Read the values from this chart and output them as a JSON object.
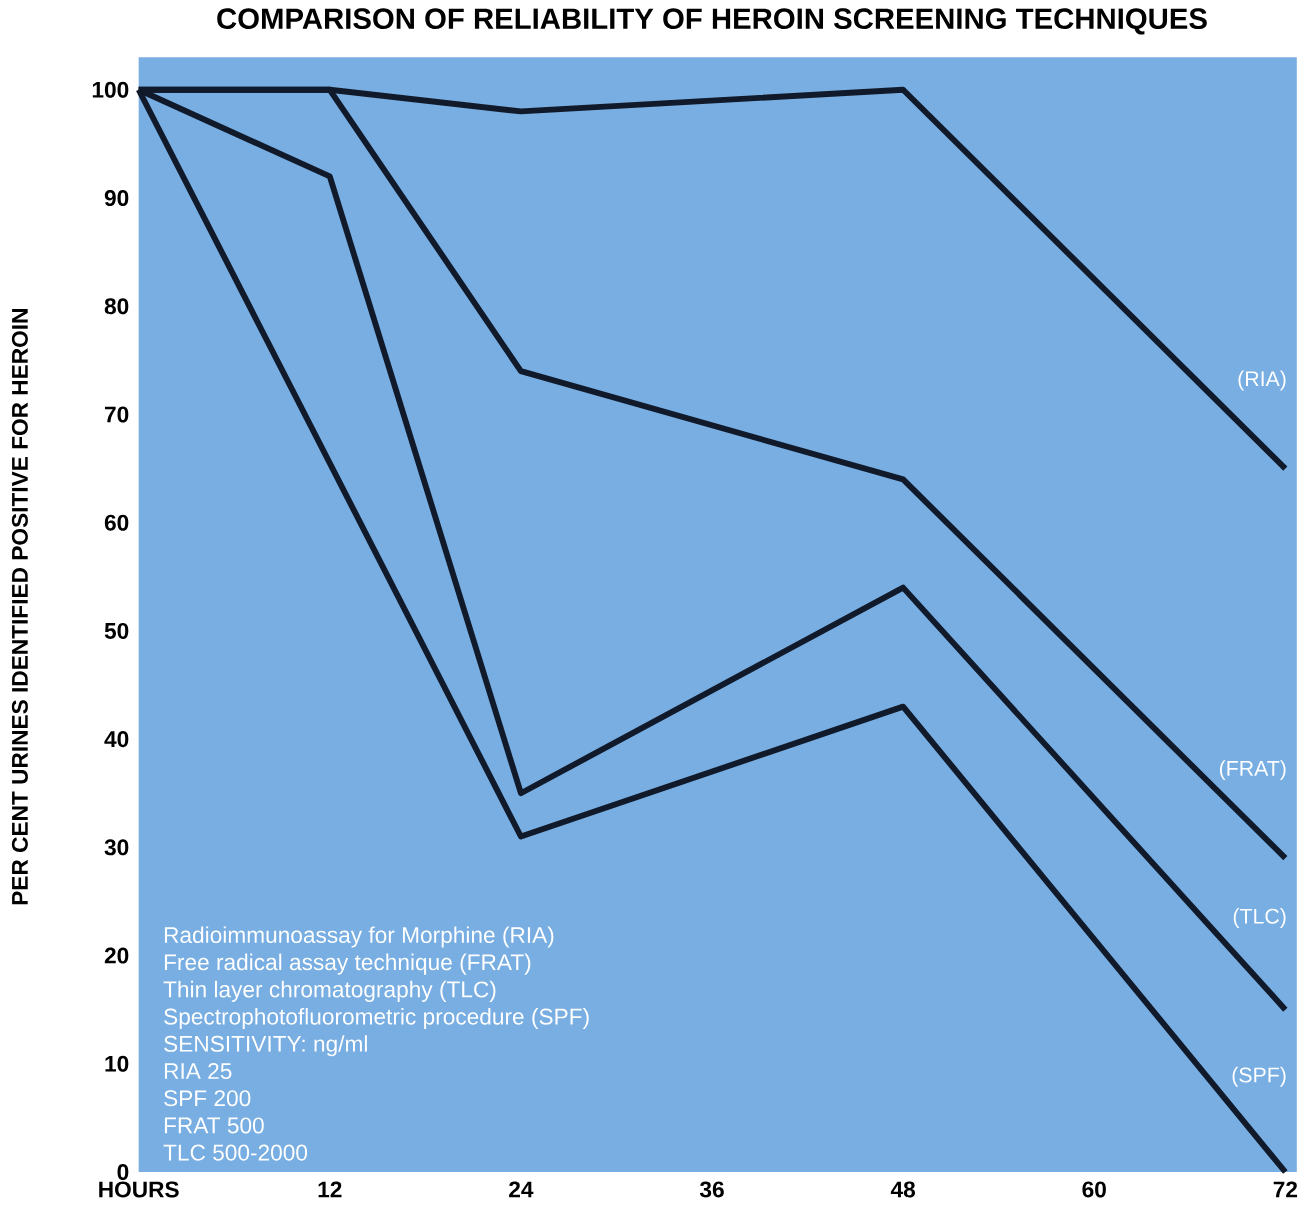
{
  "chart_data": {
    "type": "line",
    "title": "COMPARISON OF RELIABILITY OF HEROIN SCREENING TECHNIQUES",
    "ylabel": "PER CENT URINES IDENTIFIED POSITIVE FOR HEROIN",
    "x": [
      0,
      12,
      24,
      48,
      72
    ],
    "series": [
      {
        "name": "(RIA)",
        "color": "#111a2a",
        "values": [
          100,
          100,
          98,
          100,
          65
        ]
      },
      {
        "name": "(FRAT)",
        "color": "#111a2a",
        "values": [
          100,
          100,
          74,
          64,
          29
        ]
      },
      {
        "name": "(TLC)",
        "color": "#111a2a",
        "values": [
          100,
          92,
          35,
          54,
          15
        ]
      },
      {
        "name": "(SPF)",
        "color": "#111a2a",
        "x": [
          0,
          24,
          48,
          72
        ],
        "values": [
          100,
          31,
          43,
          0
        ]
      }
    ],
    "xlim": [
      0,
      72
    ],
    "ylim": [
      0,
      103
    ],
    "xticks": [
      {
        "value": 0,
        "label": "HOURS"
      },
      12,
      24,
      36,
      48,
      60,
      72
    ],
    "yticks": [
      0,
      10,
      20,
      30,
      40,
      50,
      60,
      70,
      80,
      90,
      100
    ],
    "marker": "none",
    "line_style": "solid",
    "annotations": [
      "Radioimmunoassay for Morphine (RIA)",
      "Free radical assay technique (FRAT)",
      "Thin layer chromatography (TLC)",
      "Spectrophotofluorometric procedure (SPF)",
      "SENSITIVITY: ng/ml",
      "RIA 25",
      "SPF 200",
      "FRAT 500",
      "TLC 500-2000"
    ]
  }
}
